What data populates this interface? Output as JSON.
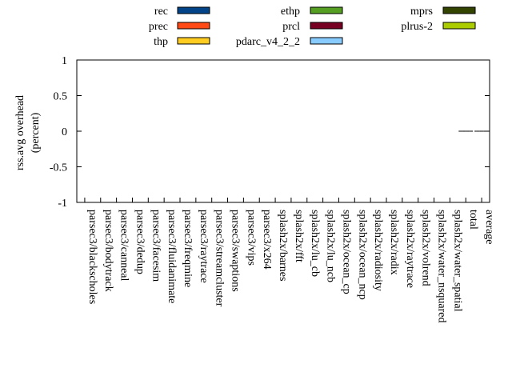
{
  "chart_data": {
    "type": "bar",
    "title": "",
    "xlabel": "",
    "ylabel": [
      "rss.avg overhead",
      "(percent)"
    ],
    "ylim": [
      -1,
      1
    ],
    "yticks": [
      1,
      0.5,
      0,
      -0.5,
      -1
    ],
    "ytick_labels": [
      "1",
      "0.5",
      "0",
      "-0.5",
      "-1"
    ],
    "grid": false,
    "legend_placement": "top",
    "categories": [
      "parsec3/blackscholes",
      "parsec3/bodytrack",
      "parsec3/canneal",
      "parsec3/dedup",
      "parsec3/facesim",
      "parsec3/fluidanimate",
      "parsec3/freqmine",
      "parsec3/raytrace",
      "parsec3/streamcluster",
      "parsec3/swaptions",
      "parsec3/vips",
      "parsec3/x264",
      "splash2x/barnes",
      "splash2x/fft",
      "splash2x/lu_cb",
      "splash2x/lu_ncb",
      "splash2x/ocean_cp",
      "splash2x/ocean_ncp",
      "splash2x/radiosity",
      "splash2x/radix",
      "splash2x/raytrace",
      "splash2x/volrend",
      "splash2x/water_nsquared",
      "splash2x/water_spatial",
      "total",
      "average"
    ],
    "series": [
      {
        "name": "rec",
        "color": "#034489",
        "values": [
          null,
          null,
          null,
          null,
          null,
          null,
          null,
          null,
          null,
          null,
          null,
          null,
          null,
          null,
          null,
          null,
          null,
          null,
          null,
          null,
          null,
          null,
          null,
          null,
          0,
          0
        ]
      },
      {
        "name": "prec",
        "color": "#ff4a15",
        "values": [
          null,
          null,
          null,
          null,
          null,
          null,
          null,
          null,
          null,
          null,
          null,
          null,
          null,
          null,
          null,
          null,
          null,
          null,
          null,
          null,
          null,
          null,
          null,
          null,
          0,
          0
        ]
      },
      {
        "name": "thp",
        "color": "#ffcc22",
        "values": [
          null,
          null,
          null,
          null,
          null,
          null,
          null,
          null,
          null,
          null,
          null,
          null,
          null,
          null,
          null,
          null,
          null,
          null,
          null,
          null,
          null,
          null,
          null,
          null,
          0,
          0
        ]
      },
      {
        "name": "ethp",
        "color": "#559f22",
        "values": [
          null,
          null,
          null,
          null,
          null,
          null,
          null,
          null,
          null,
          null,
          null,
          null,
          null,
          null,
          null,
          null,
          null,
          null,
          null,
          null,
          null,
          null,
          null,
          null,
          0,
          0
        ]
      },
      {
        "name": "prcl",
        "color": "#770022",
        "values": [
          null,
          null,
          null,
          null,
          null,
          null,
          null,
          null,
          null,
          null,
          null,
          null,
          null,
          null,
          null,
          null,
          null,
          null,
          null,
          null,
          null,
          null,
          null,
          null,
          0,
          0
        ]
      },
      {
        "name": "pdarc_v4_2_2",
        "color": "#88ccff",
        "values": [
          null,
          null,
          null,
          null,
          null,
          null,
          null,
          null,
          null,
          null,
          null,
          null,
          null,
          null,
          null,
          null,
          null,
          null,
          null,
          null,
          null,
          null,
          null,
          null,
          0,
          0
        ]
      },
      {
        "name": "mprs",
        "color": "#334400",
        "values": [
          null,
          null,
          null,
          null,
          null,
          null,
          null,
          null,
          null,
          null,
          null,
          null,
          null,
          null,
          null,
          null,
          null,
          null,
          null,
          null,
          null,
          null,
          null,
          null,
          0,
          0
        ]
      },
      {
        "name": "plrus-2",
        "color": "#aacc00",
        "values": [
          null,
          null,
          null,
          null,
          null,
          null,
          null,
          null,
          null,
          null,
          null,
          null,
          null,
          null,
          null,
          null,
          null,
          null,
          null,
          null,
          null,
          null,
          null,
          null,
          0,
          0
        ]
      }
    ]
  }
}
